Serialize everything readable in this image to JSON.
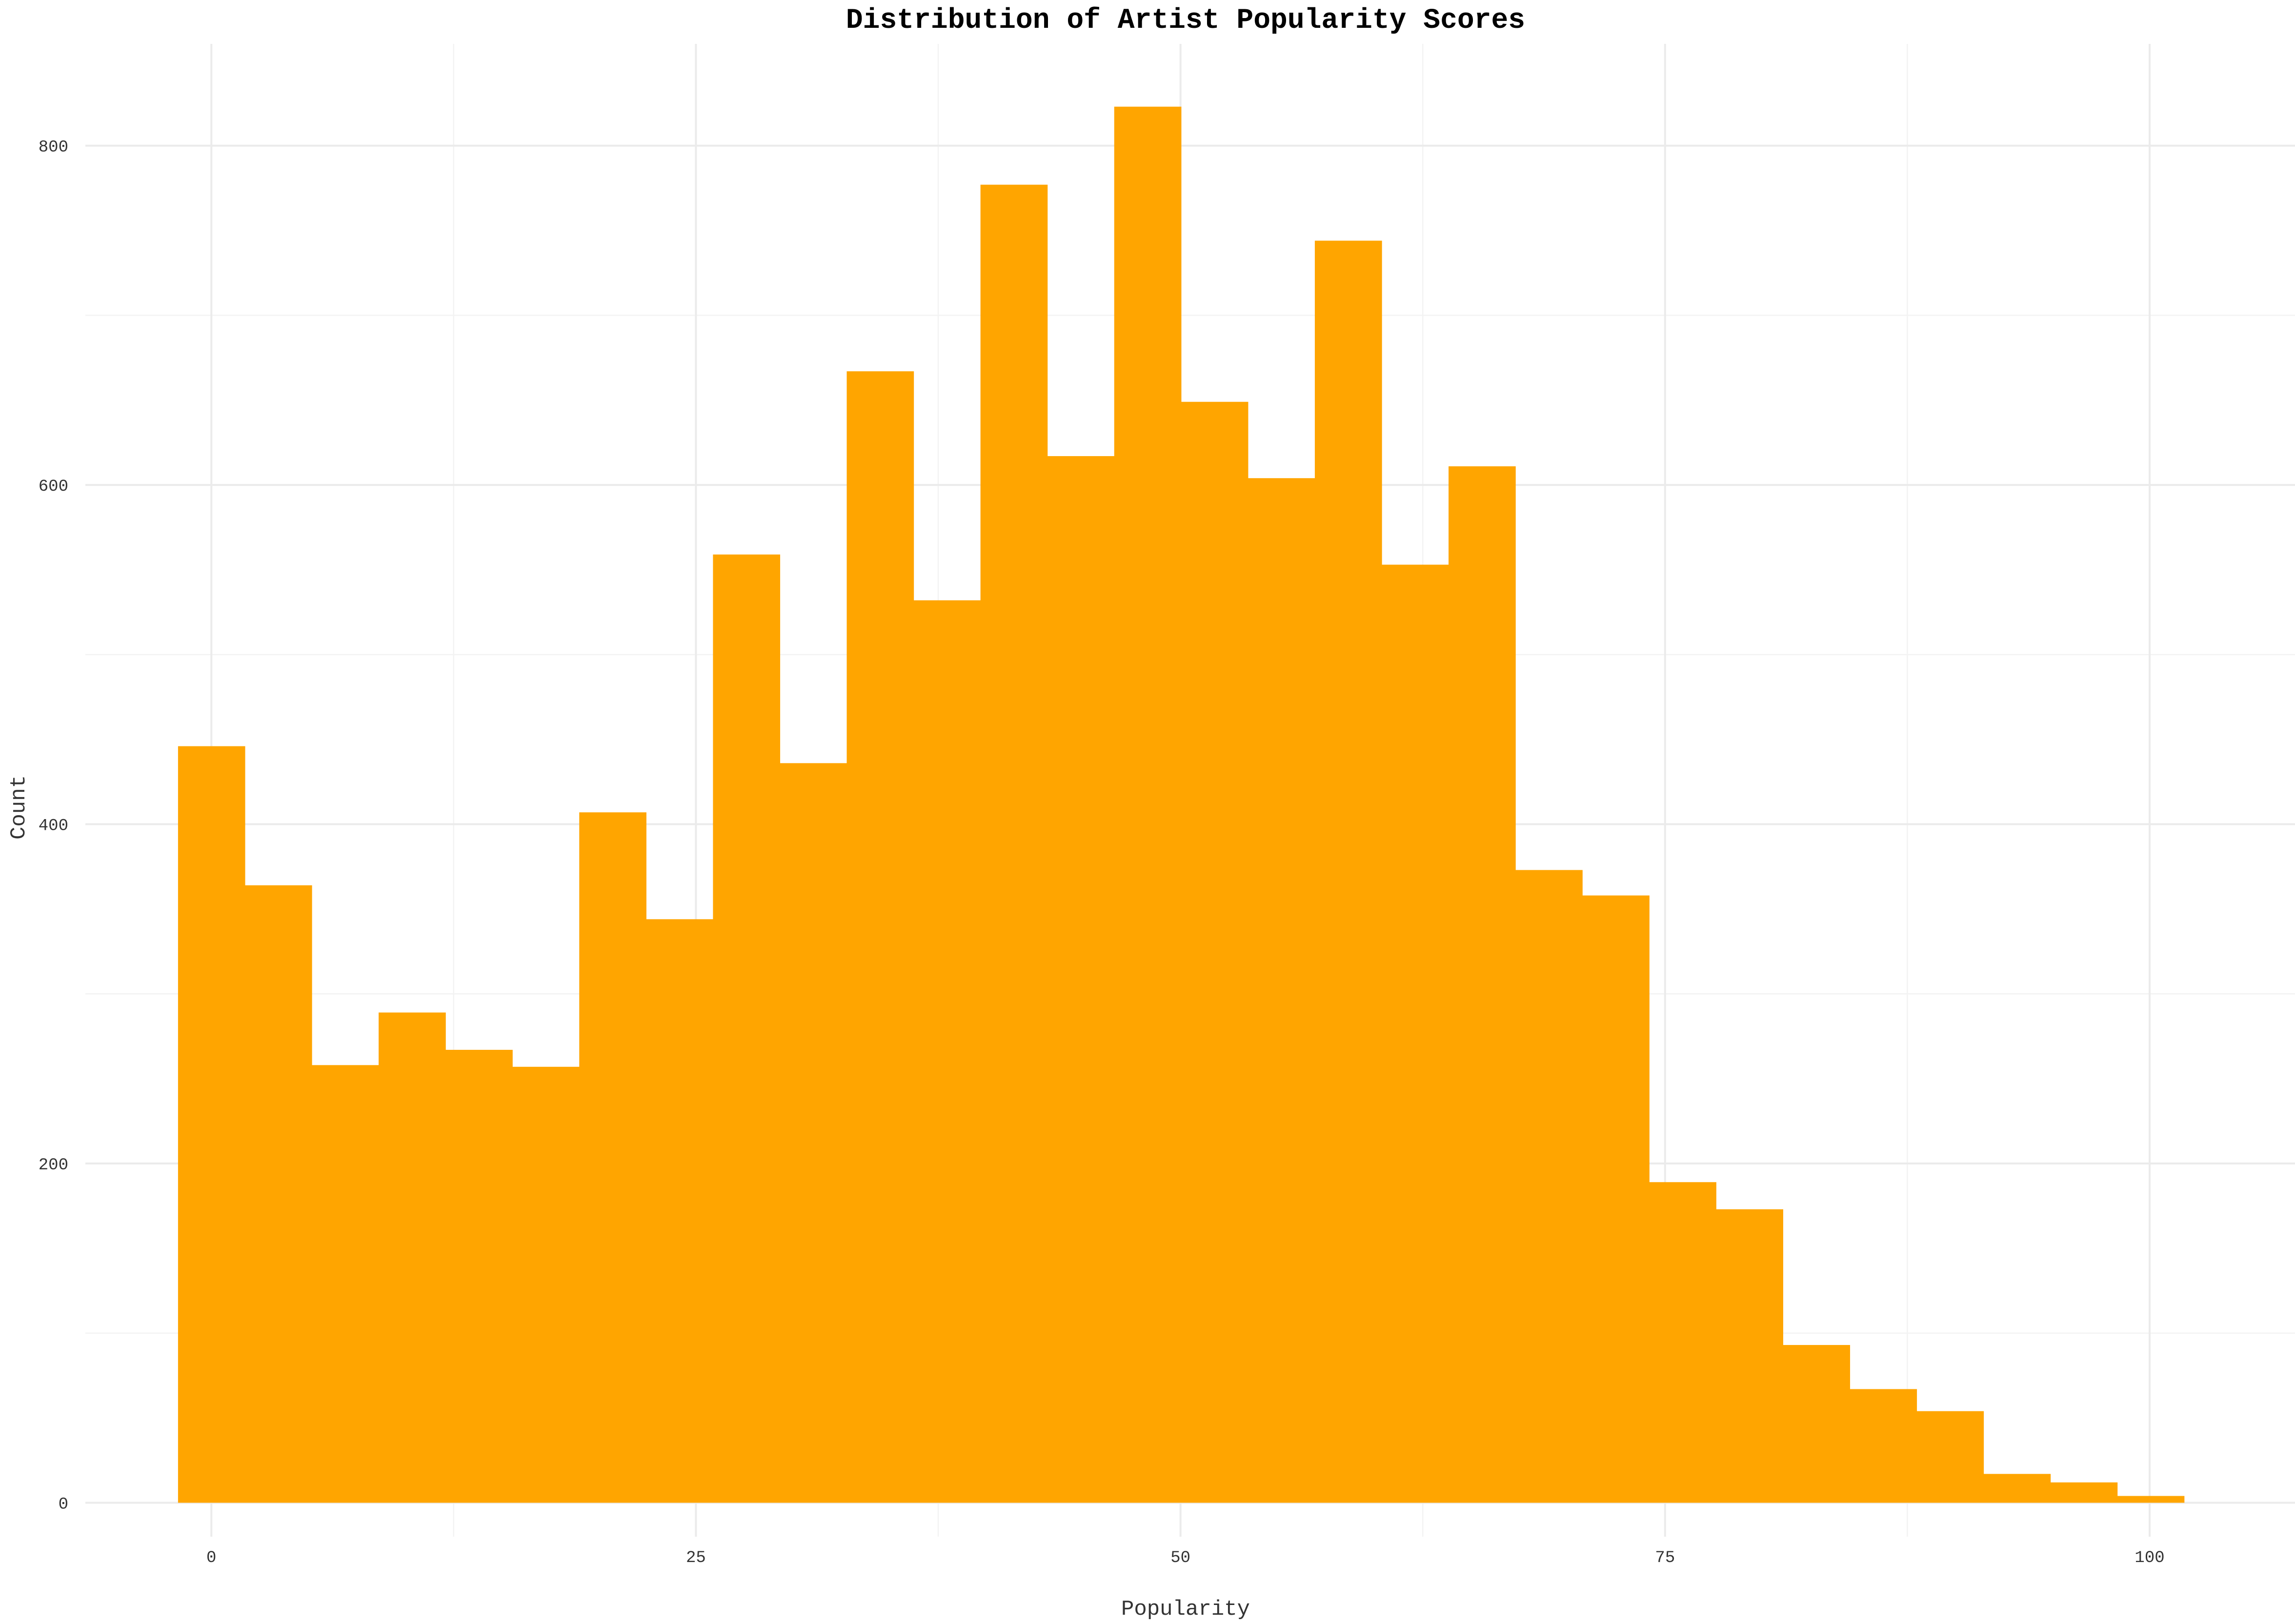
{
  "chart_data": {
    "type": "bar",
    "title": "Distribution of Artist Popularity Scores",
    "xlabel": "Popularity",
    "ylabel": "Count",
    "xlim": [
      -6.5,
      107.5
    ],
    "ylim": [
      -20,
      860
    ],
    "x_ticks": [
      0,
      25,
      50,
      75,
      100
    ],
    "x_tick_labels": [
      "0",
      "25",
      "50",
      "75",
      "100"
    ],
    "y_ticks": [
      0,
      200,
      400,
      600,
      800
    ],
    "y_tick_labels": [
      "0",
      "200",
      "400",
      "600",
      "800"
    ],
    "bin_width": 3.45,
    "bins_start": -1.72,
    "values": [
      446,
      364,
      258,
      289,
      267,
      257,
      407,
      344,
      559,
      436,
      667,
      532,
      777,
      617,
      823,
      649,
      604,
      744,
      553,
      611,
      373,
      358,
      189,
      173,
      93,
      67,
      54,
      17,
      12,
      4
    ],
    "color": "#FFA500",
    "grid": true,
    "legend": "none"
  }
}
